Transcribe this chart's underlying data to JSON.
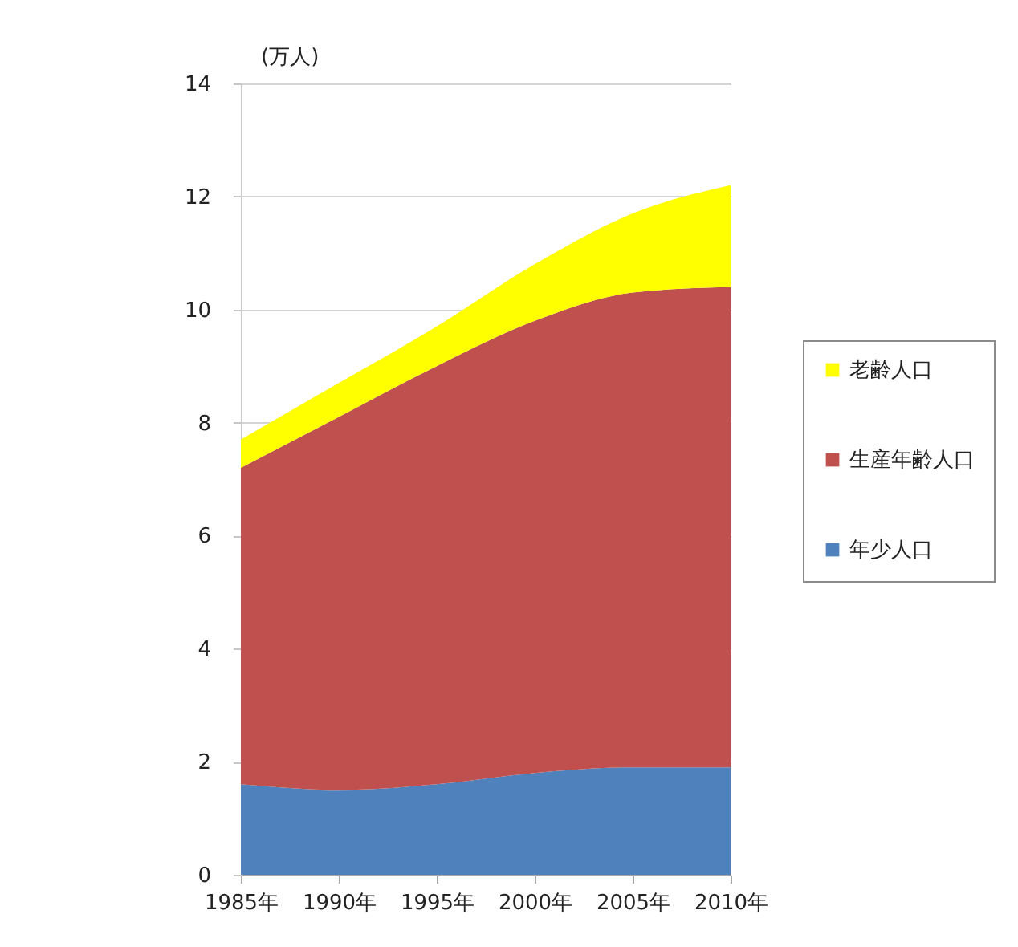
{
  "chart_data": {
    "type": "area",
    "ylabel": "(万人)",
    "categories": [
      "1985年",
      "1990年",
      "1995年",
      "2000年",
      "2005年",
      "2010年"
    ],
    "series": [
      {
        "name": "年少人口",
        "color": "#4f81bd",
        "values": [
          1.6,
          1.5,
          1.6,
          1.8,
          1.9,
          1.9
        ]
      },
      {
        "name": "生産年齢人口",
        "color": "#c0504d",
        "values": [
          5.6,
          6.6,
          7.4,
          8.0,
          8.4,
          8.5
        ]
      },
      {
        "name": "老齢人口",
        "color": "#ffff00",
        "values": [
          0.5,
          0.6,
          0.7,
          1.0,
          1.4,
          1.8
        ]
      }
    ],
    "stacked": true,
    "ylim": [
      0,
      14
    ],
    "yticks": [
      0,
      2,
      4,
      6,
      8,
      10,
      12,
      14
    ],
    "grid": "y",
    "legend": "right"
  }
}
